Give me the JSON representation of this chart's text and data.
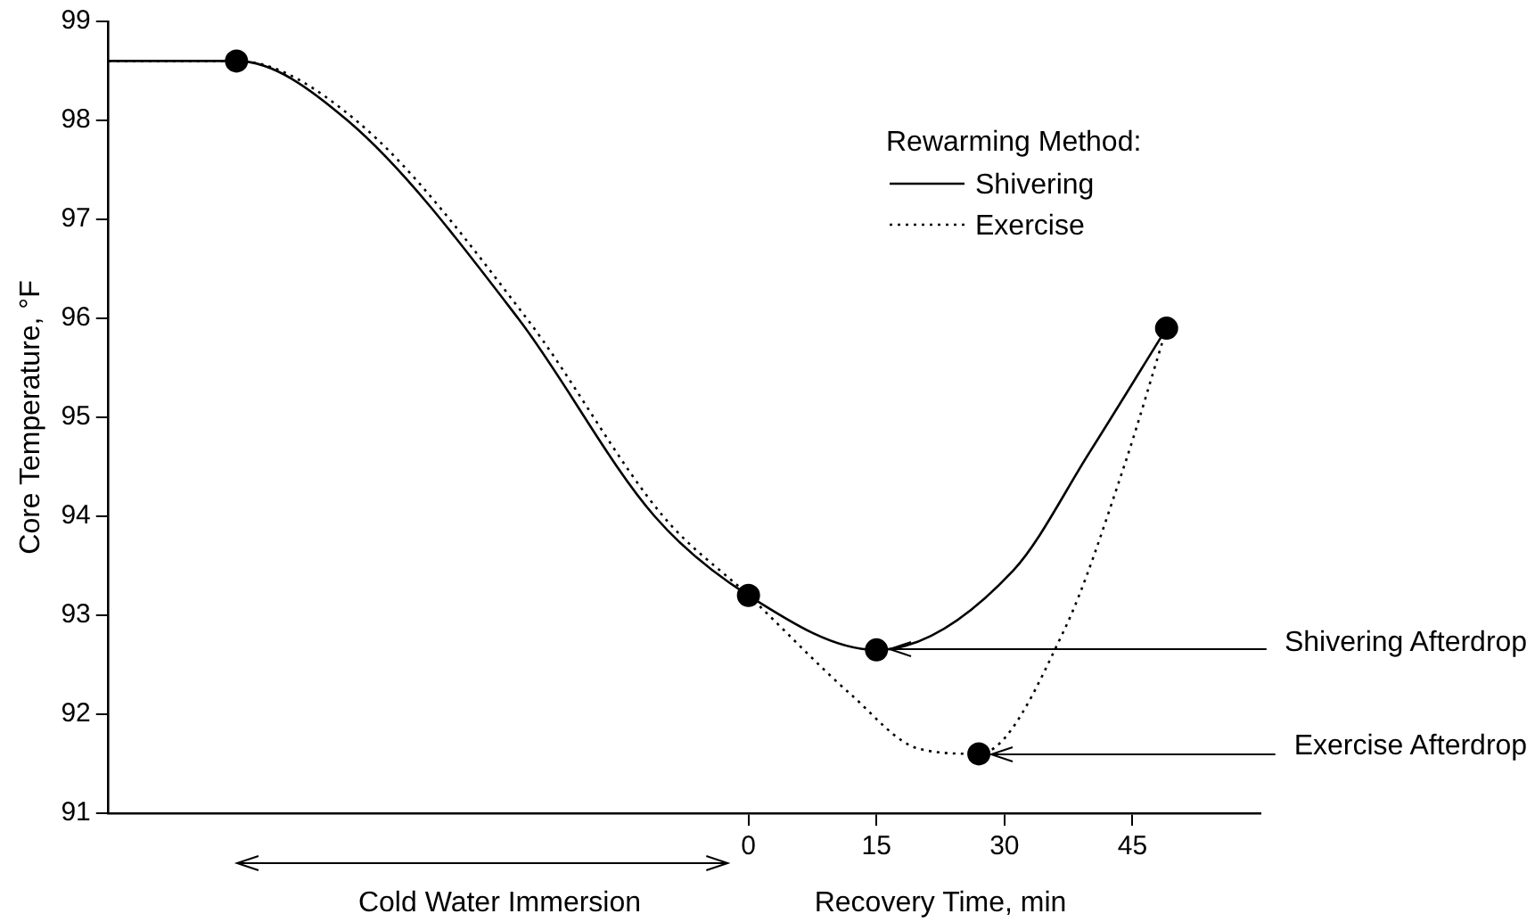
{
  "chart_data": {
    "type": "line",
    "ylabel": "Core Temperature, °F",
    "xlabel": "Recovery Time, min",
    "legend_title": "Rewarming Method:",
    "xlim": [
      -75,
      60
    ],
    "xticks": [
      0,
      15,
      30,
      45
    ],
    "ylim": [
      91,
      99
    ],
    "yticks": [
      91,
      92,
      93,
      94,
      95,
      96,
      97,
      98,
      99
    ],
    "grid": false,
    "legend": "top right",
    "marker": "none",
    "series": [
      {
        "name": "Shivering",
        "type": "line",
        "line_style": "solid",
        "color": "#000000",
        "x": [
          -75,
          -60,
          -47,
          -27,
          -11,
          0,
          15,
          31,
          40,
          49
        ],
        "values": [
          98.6,
          98.6,
          98,
          96,
          94,
          93.2,
          92.65,
          93.45,
          94.65,
          95.9
        ]
      },
      {
        "name": "Exercise",
        "type": "line",
        "line_style": "dotted",
        "color": "#000000",
        "x": [
          -75,
          -60,
          -46,
          -26,
          -10,
          0,
          12,
          20,
          27,
          37,
          44,
          49
        ],
        "values": [
          98.6,
          98.6,
          98,
          96,
          94,
          93.2,
          92.2,
          91.65,
          91.6,
          92.85,
          94.5,
          95.9
        ]
      },
      {
        "type": "scatter",
        "marker": "circle",
        "color": "#000000",
        "x": [
          -60,
          0,
          15,
          27,
          49
        ],
        "values": [
          98.6,
          93.2,
          92.65,
          91.6,
          95.9
        ]
      }
    ],
    "annotations": [
      "Cold Water Immersion",
      {
        "text": "Shivering Afterdrop",
        "x": 15,
        "y": 92.65
      },
      {
        "text": "Exercise Afterdrop",
        "x": 27,
        "y": 91.6
      }
    ]
  }
}
